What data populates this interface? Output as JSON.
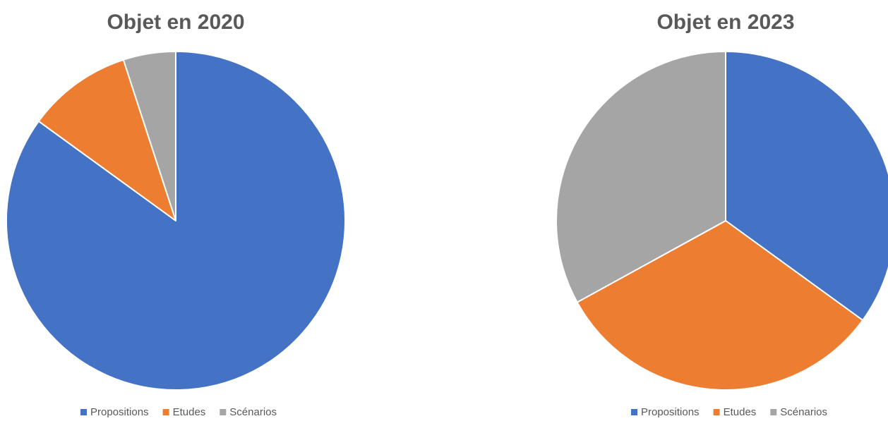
{
  "chart_data": [
    {
      "type": "pie",
      "title": "Objet en 2020",
      "categories": [
        "Propositions",
        "Etudes",
        "Scénarios"
      ],
      "values": [
        85,
        10,
        5
      ],
      "colors": [
        "#4472C4",
        "#ED7D31",
        "#A5A5A5"
      ],
      "start_angle": "12 o'clock",
      "direction": "clockwise",
      "legend_position": "bottom"
    },
    {
      "type": "pie",
      "title": "Objet en 2023",
      "categories": [
        "Propositions",
        "Etudes",
        "Scénarios"
      ],
      "values": [
        35,
        32,
        33
      ],
      "colors": [
        "#4472C4",
        "#ED7D31",
        "#A5A5A5"
      ],
      "start_angle": "12 o'clock",
      "direction": "clockwise",
      "legend_position": "bottom"
    }
  ]
}
